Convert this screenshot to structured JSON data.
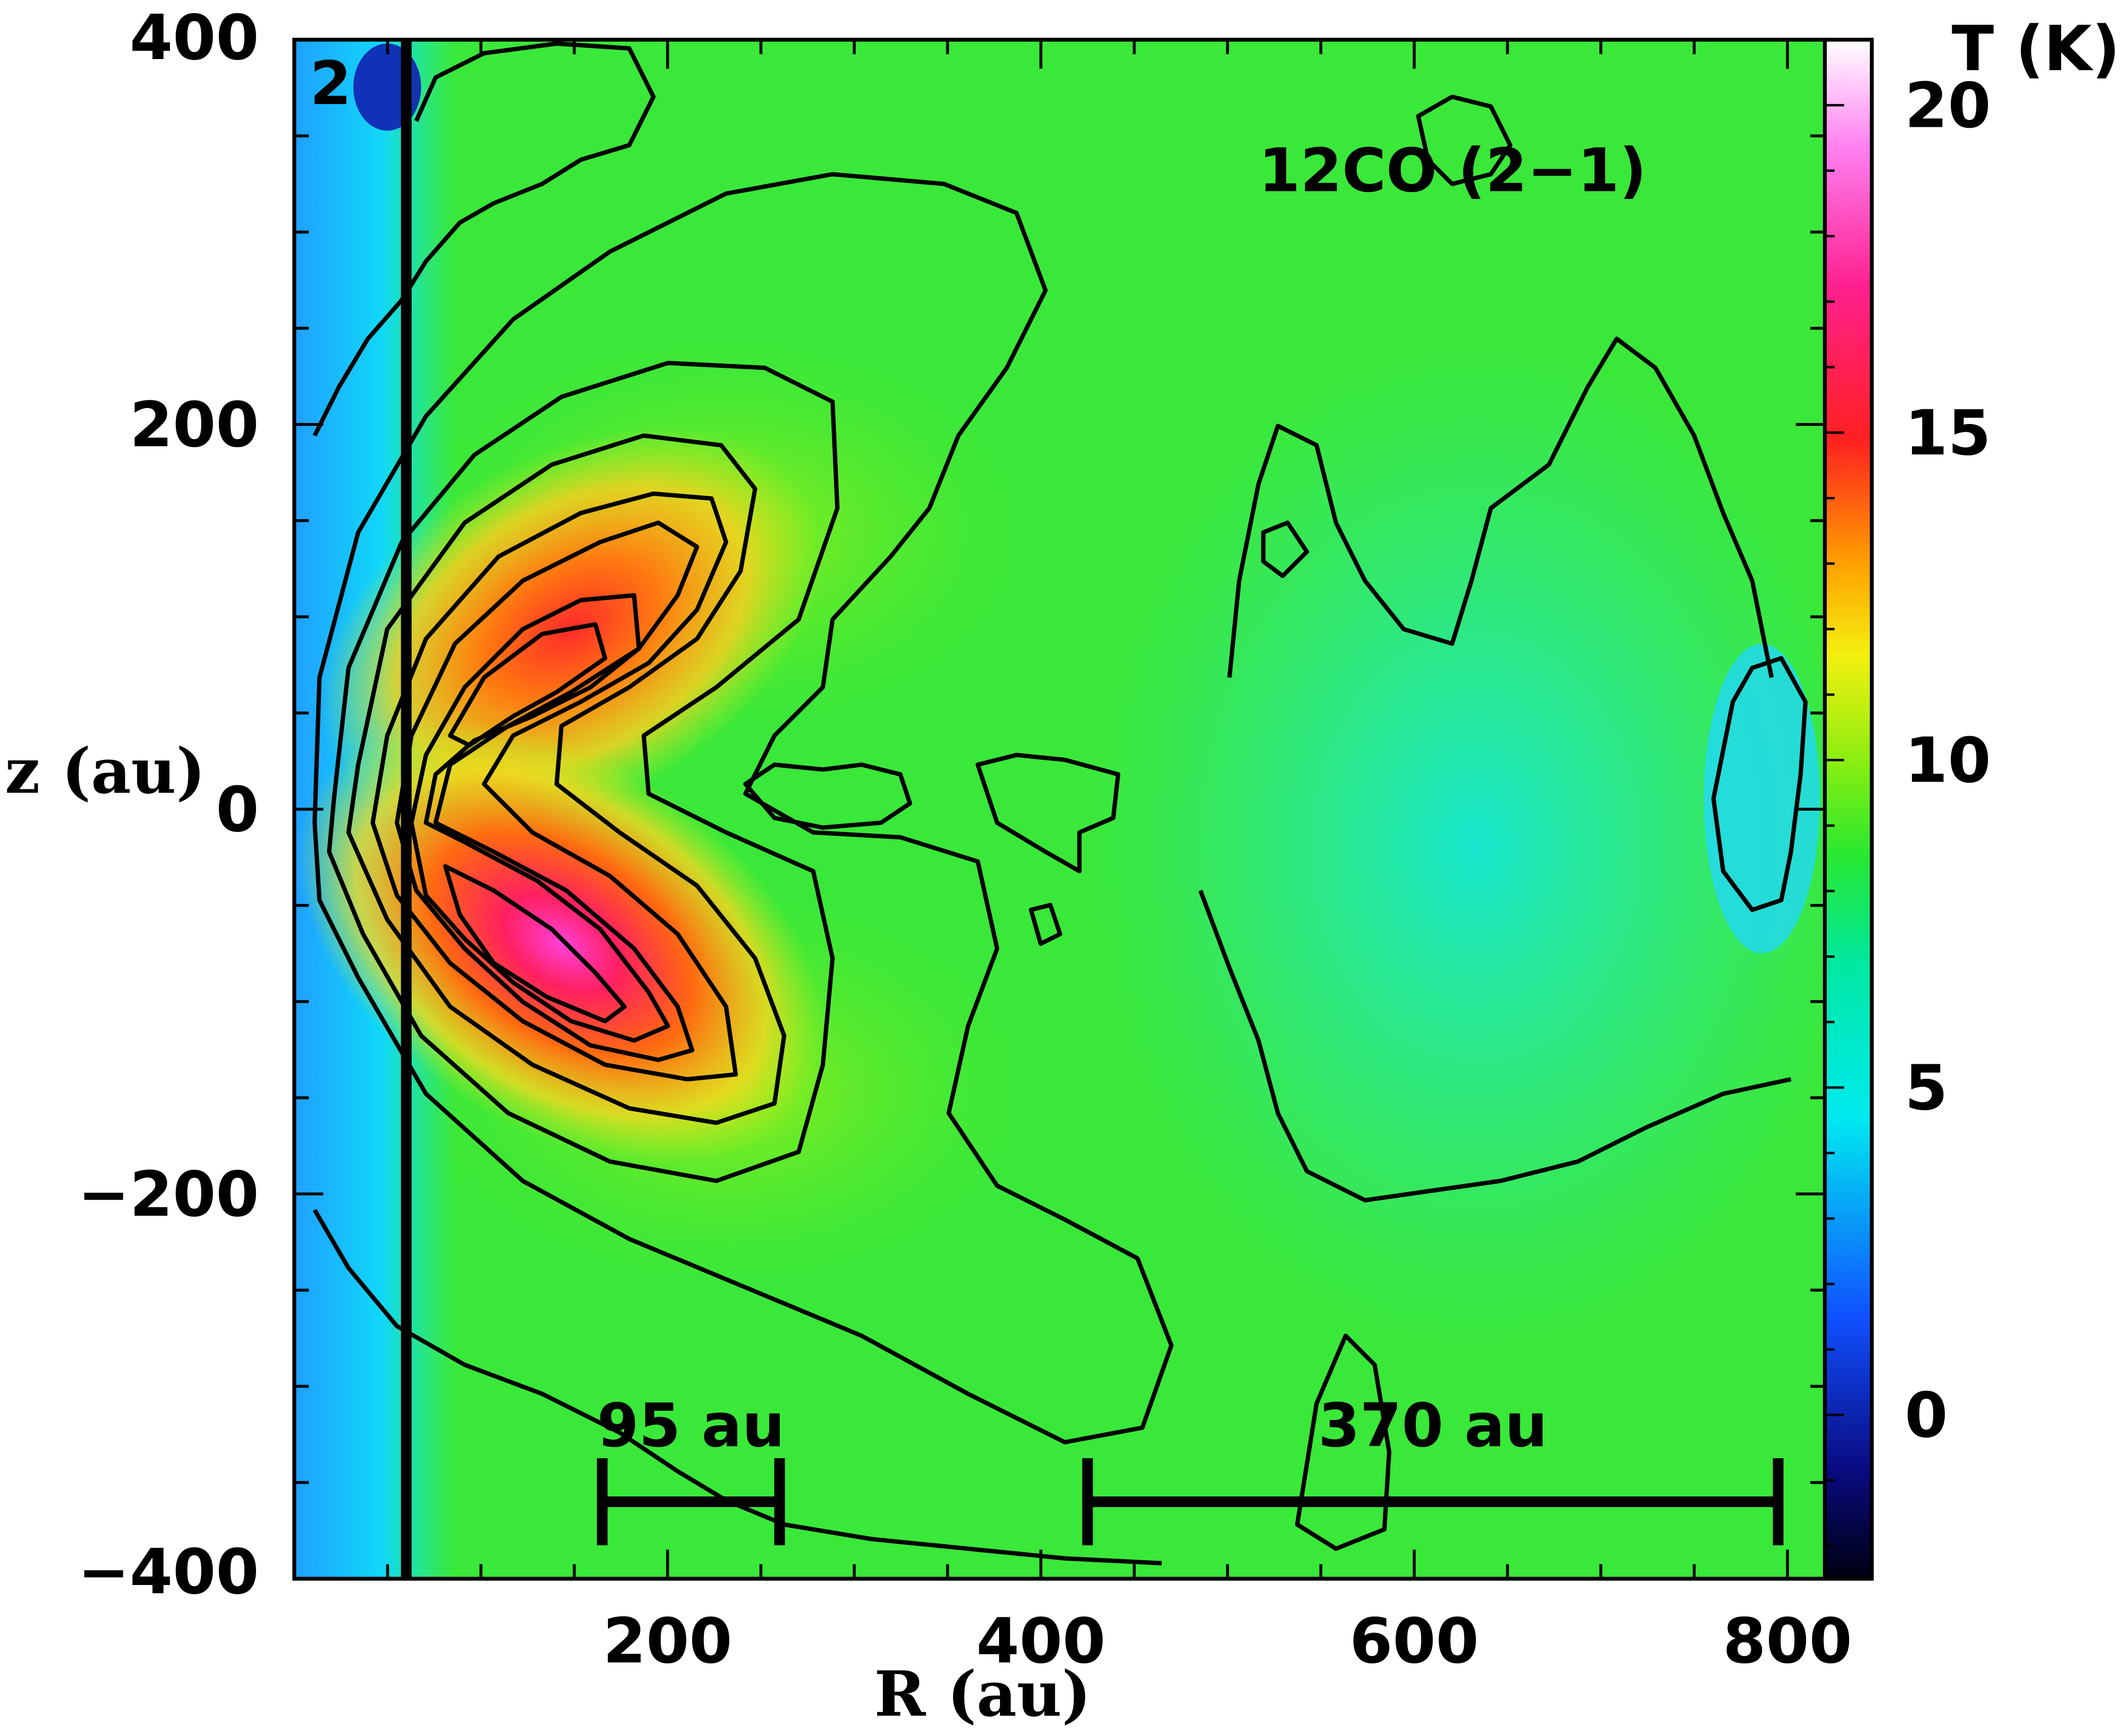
{
  "chart_data": {
    "type": "heatmap",
    "panel_label": "2",
    "line_label": "12CO (2−1)",
    "xlabel": "R (au)",
    "ylabel": "z (au)",
    "xlim": [
      0,
      820
    ],
    "ylim": [
      -400,
      400
    ],
    "xticks": [
      200,
      400,
      600,
      800
    ],
    "xtick_labels": [
      "200",
      "400",
      "600",
      "800"
    ],
    "yticks": [
      -400,
      -200,
      0,
      200,
      400
    ],
    "ytick_labels": [
      "−400",
      "−200",
      "0",
      "200",
      "400"
    ],
    "colorbar": {
      "title": "T (K)",
      "range": [
        -2.5,
        21
      ],
      "ticks": [
        0,
        5,
        10,
        15,
        20
      ],
      "tick_labels": [
        "0",
        "5",
        "10",
        "15",
        "20"
      ]
    },
    "vertical_line_R": 60,
    "hot_spots": [
      {
        "R": 120,
        "z": 70,
        "T": 15.5
      },
      {
        "R": 110,
        "z": -55,
        "T": 18.5
      }
    ],
    "scale_bars": [
      {
        "label": "95 au",
        "R_start": 165,
        "R_end": 260,
        "z": -360
      },
      {
        "label": "370 au",
        "R_start": 425,
        "R_end": 795,
        "z": -360
      }
    ],
    "colors": {
      "cold": "#1a1aa0",
      "cool": "#00e0e0",
      "background": "#30e838",
      "warm": "#f2e81e",
      "hot": "#ff2a50",
      "hottest": "#ff45d0",
      "contour": "#000000"
    }
  }
}
